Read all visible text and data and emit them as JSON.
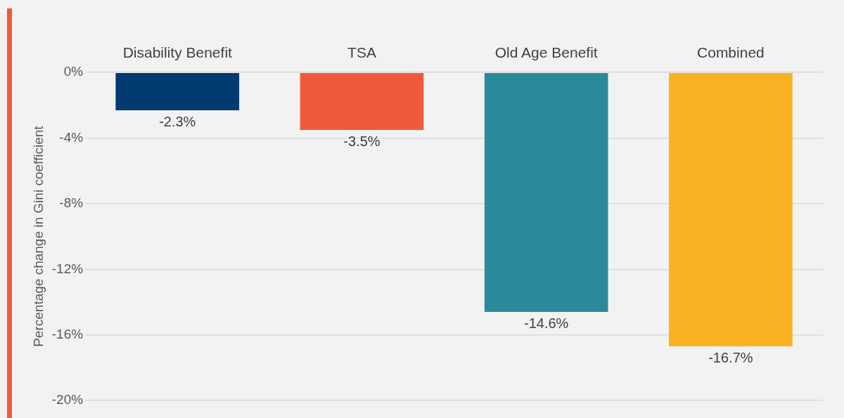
{
  "chart_data": {
    "type": "bar",
    "ylabel": "Percentage change in Gini coefficient",
    "categories": [
      "Disability Benefit",
      "TSA",
      "Old Age Benefit",
      "Combined"
    ],
    "values": [
      -2.3,
      -3.5,
      -14.6,
      -16.7
    ],
    "colors": [
      "#003a70",
      "#f05a3c",
      "#2a8a9a",
      "#f9b221"
    ],
    "value_labels": [
      "-2.3%",
      "-3.5%",
      "-14.6%",
      "-16.7%"
    ],
    "ylim": [
      -20,
      0
    ],
    "yticks": [
      {
        "value": 0,
        "label": "0%"
      },
      {
        "value": -4,
        "label": "-4%"
      },
      {
        "value": -8,
        "label": "-8%"
      },
      {
        "value": -12,
        "label": "-12%"
      },
      {
        "value": -16,
        "label": "-16%"
      },
      {
        "value": -20,
        "label": "-20%"
      }
    ],
    "grid": "y",
    "legend": false
  }
}
